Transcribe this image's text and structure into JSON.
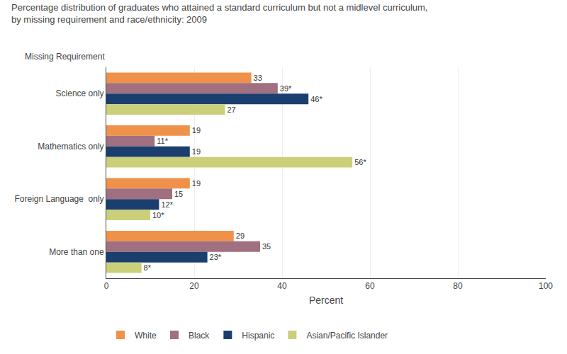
{
  "chart_data": {
    "type": "bar",
    "orientation": "horizontal",
    "title": "Percentage distribution of graduates who attained a standard curriculum but not a midlevel curriculum,",
    "subtitle": "by missing requirement and race/ethnicity: 2009",
    "xlabel": "Percent",
    "ylabel": "Missing Requirement",
    "categories": [
      "Science only",
      "Mathematics only",
      "Foreign Language  only",
      "More than one"
    ],
    "series": [
      {
        "name": "White",
        "color": "#F0914A",
        "values": [
          33,
          19,
          19,
          29
        ],
        "value_labels": [
          "33",
          "19",
          "19",
          "29"
        ]
      },
      {
        "name": "Black",
        "color": "#A07080",
        "values": [
          39,
          11,
          15,
          35
        ],
        "value_labels": [
          "39*",
          "11*",
          "15",
          "35"
        ]
      },
      {
        "name": "Hispanic",
        "color": "#1A3F6F",
        "values": [
          46,
          19,
          12,
          23
        ],
        "value_labels": [
          "46*",
          "19",
          "12*",
          "23*"
        ]
      },
      {
        "name": "Asian/Pacific Islander",
        "color": "#CBCF7A",
        "values": [
          27,
          56,
          10,
          8
        ],
        "value_labels": [
          "27",
          "56*",
          "10*",
          "8*"
        ]
      }
    ],
    "xlim": [
      0,
      100
    ],
    "xticks": [
      0,
      20,
      40,
      60,
      80,
      100
    ],
    "grid": true,
    "legend": "bottom",
    "data_labels": true
  }
}
